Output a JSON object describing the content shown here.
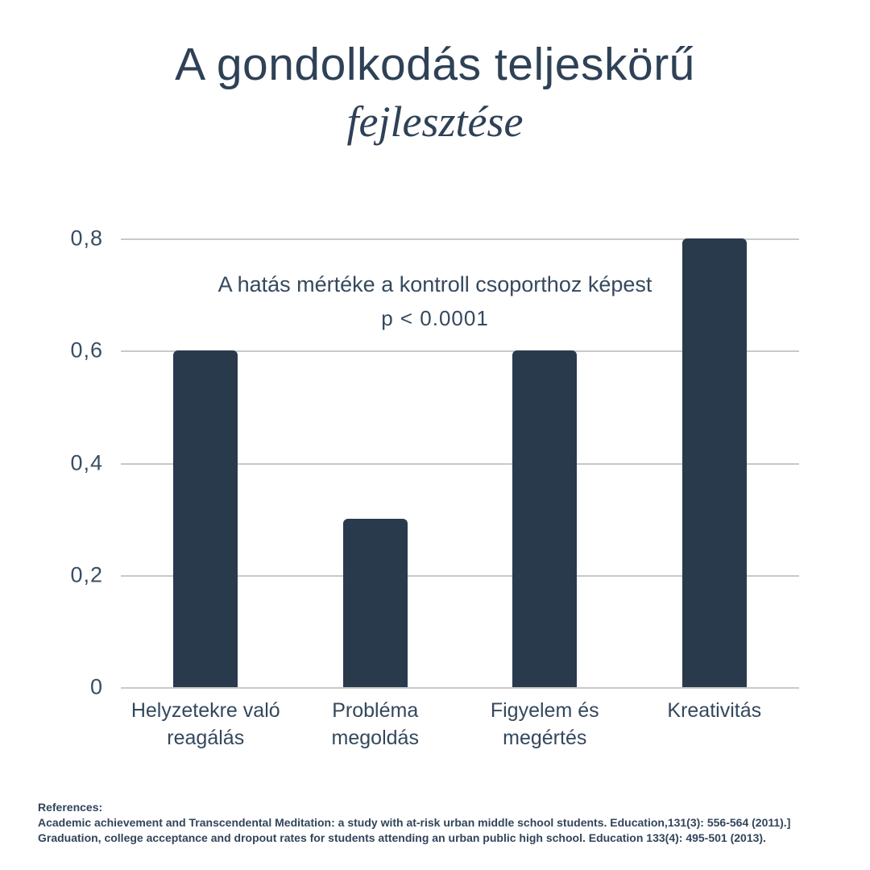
{
  "title": {
    "line1": "A gondolkodás teljeskörű",
    "line2": "fejlesztése"
  },
  "annotation": {
    "line1": "A hatás mértéke a kontroll csoporthoz képest",
    "line2": "p < 0.0001"
  },
  "chart_data": {
    "type": "bar",
    "title": "A gondolkodás teljeskörű fejlesztése",
    "categories": [
      "Helyzetekre való reagálás",
      "Probléma megoldás",
      "Figyelem és megértés",
      "Kreativitás"
    ],
    "categories_wrapped": [
      [
        "Helyzetekre való",
        "reagálás"
      ],
      [
        "Probléma",
        "megoldás"
      ],
      [
        "Figyelem és",
        "megértés"
      ],
      [
        "Kreativitás"
      ]
    ],
    "values": [
      0.6,
      0.3,
      0.6,
      0.8
    ],
    "ylim": [
      0,
      0.8
    ],
    "y_ticks": [
      {
        "label": "0,8",
        "value": 0.8
      },
      {
        "label": "0,6",
        "value": 0.6
      },
      {
        "label": "0,4",
        "value": 0.4
      },
      {
        "label": "0,2",
        "value": 0.2
      },
      {
        "label": "0",
        "value": 0.0
      }
    ],
    "grid": true,
    "legend": "none",
    "annotation": "A hatás mértéke a kontroll csoporthoz képest p < 0.0001",
    "bar_color": "#2a3a4d",
    "gridline_color": "#c9c9c9",
    "text_color": "#33485d"
  },
  "references": {
    "heading": "References:",
    "items": [
      "Academic achievement and Transcendental Meditation: a study with at-risk urban middle school students. Education,131(3): 556-564 (2011).]",
      "Graduation, college acceptance and dropout rates for students attending an urban public high school. Education 133(4): 495-501 (2013)."
    ]
  }
}
